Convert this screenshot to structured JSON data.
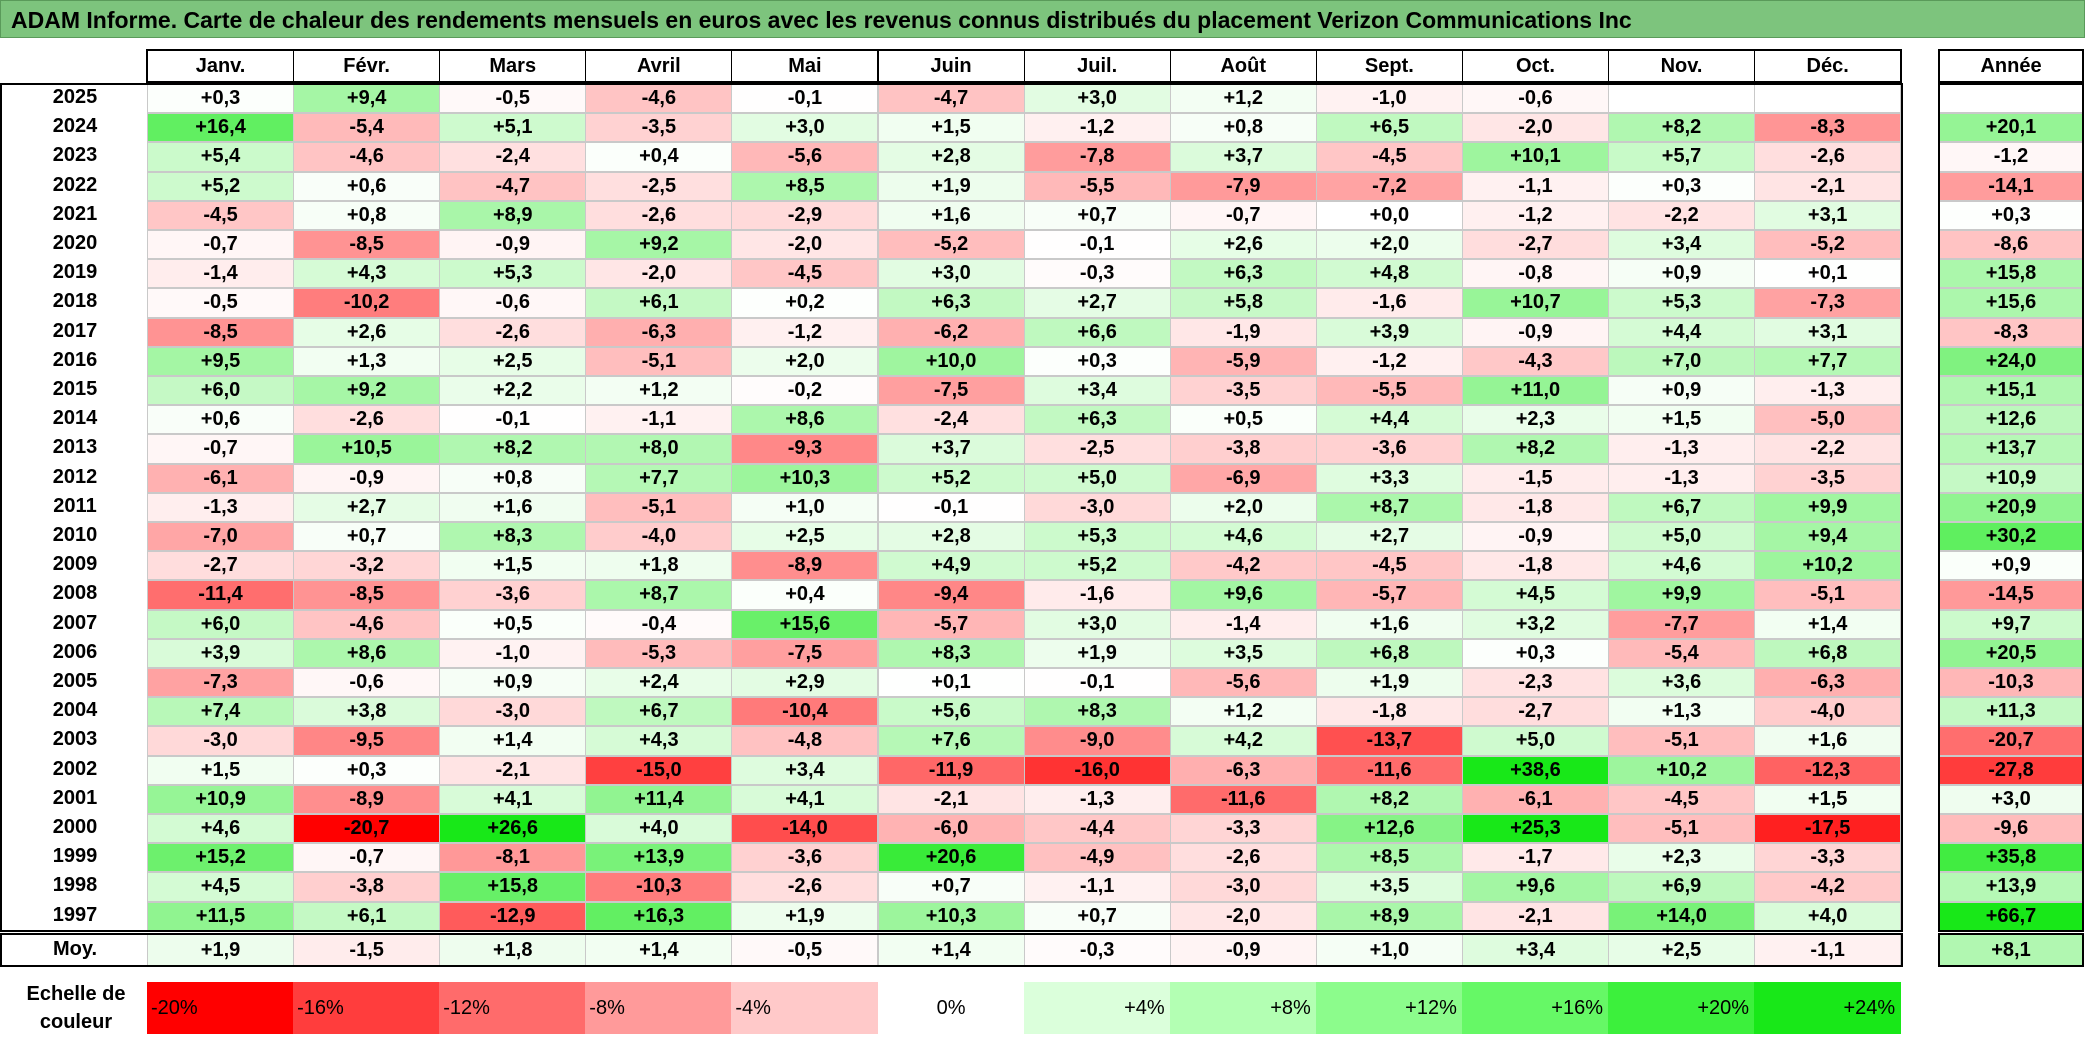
{
  "title": "ADAM Informe. Carte de chaleur des rendements mensuels en euros avec les revenus connus distribués du placement Verizon Communications Inc",
  "chart_data": {
    "type": "heatmap",
    "title": "ADAM Informe. Carte de chaleur des rendements mensuels en euros avec les revenus connus distribués du placement Verizon Communications Inc",
    "months": [
      "Janv.",
      "Févr.",
      "Mars",
      "Avril",
      "Mai",
      "Juin",
      "Juil.",
      "Août",
      "Sept.",
      "Oct.",
      "Nov.",
      "Déc."
    ],
    "year_header": "Année",
    "rows": [
      {
        "year": "2025",
        "values": [
          "+0,3",
          "+9,4",
          "-0,5",
          "-4,6",
          "-0,1",
          "-4,7",
          "+3,0",
          "+1,2",
          "-1,0",
          "-0,6",
          "",
          ""
        ],
        "annual": ""
      },
      {
        "year": "2024",
        "values": [
          "+16,4",
          "-5,4",
          "+5,1",
          "-3,5",
          "+3,0",
          "+1,5",
          "-1,2",
          "+0,8",
          "+6,5",
          "-2,0",
          "+8,2",
          "-8,3"
        ],
        "annual": "+20,1"
      },
      {
        "year": "2023",
        "values": [
          "+5,4",
          "-4,6",
          "-2,4",
          "+0,4",
          "-5,6",
          "+2,8",
          "-7,8",
          "+3,7",
          "-4,5",
          "+10,1",
          "+5,7",
          "-2,6"
        ],
        "annual": "-1,2"
      },
      {
        "year": "2022",
        "values": [
          "+5,2",
          "+0,6",
          "-4,7",
          "-2,5",
          "+8,5",
          "+1,9",
          "-5,5",
          "-7,9",
          "-7,2",
          "-1,1",
          "+0,3",
          "-2,1"
        ],
        "annual": "-14,1"
      },
      {
        "year": "2021",
        "values": [
          "-4,5",
          "+0,8",
          "+8,9",
          "-2,6",
          "-2,9",
          "+1,6",
          "+0,7",
          "-0,7",
          "+0,0",
          "-1,2",
          "-2,2",
          "+3,1"
        ],
        "annual": "+0,3"
      },
      {
        "year": "2020",
        "values": [
          "-0,7",
          "-8,5",
          "-0,9",
          "+9,2",
          "-2,0",
          "-5,2",
          "-0,1",
          "+2,6",
          "+2,0",
          "-2,7",
          "+3,4",
          "-5,2"
        ],
        "annual": "-8,6"
      },
      {
        "year": "2019",
        "values": [
          "-1,4",
          "+4,3",
          "+5,3",
          "-2,0",
          "-4,5",
          "+3,0",
          "-0,3",
          "+6,3",
          "+4,8",
          "-0,8",
          "+0,9",
          "+0,1"
        ],
        "annual": "+15,8"
      },
      {
        "year": "2018",
        "values": [
          "-0,5",
          "-10,2",
          "-0,6",
          "+6,1",
          "+0,2",
          "+6,3",
          "+2,7",
          "+5,8",
          "-1,6",
          "+10,7",
          "+5,3",
          "-7,3"
        ],
        "annual": "+15,6"
      },
      {
        "year": "2017",
        "values": [
          "-8,5",
          "+2,6",
          "-2,6",
          "-6,3",
          "-1,2",
          "-6,2",
          "+6,6",
          "-1,9",
          "+3,9",
          "-0,9",
          "+4,4",
          "+3,1"
        ],
        "annual": "-8,3"
      },
      {
        "year": "2016",
        "values": [
          "+9,5",
          "+1,3",
          "+2,5",
          "-5,1",
          "+2,0",
          "+10,0",
          "+0,3",
          "-5,9",
          "-1,2",
          "-4,3",
          "+7,0",
          "+7,7"
        ],
        "annual": "+24,0"
      },
      {
        "year": "2015",
        "values": [
          "+6,0",
          "+9,2",
          "+2,2",
          "+1,2",
          "-0,2",
          "-7,5",
          "+3,4",
          "-3,5",
          "-5,5",
          "+11,0",
          "+0,9",
          "-1,3"
        ],
        "annual": "+15,1"
      },
      {
        "year": "2014",
        "values": [
          "+0,6",
          "-2,6",
          "-0,1",
          "-1,1",
          "+8,6",
          "-2,4",
          "+6,3",
          "+0,5",
          "+4,4",
          "+2,3",
          "+1,5",
          "-5,0"
        ],
        "annual": "+12,6"
      },
      {
        "year": "2013",
        "values": [
          "-0,7",
          "+10,5",
          "+8,2",
          "+8,0",
          "-9,3",
          "+3,7",
          "-2,5",
          "-3,8",
          "-3,6",
          "+8,2",
          "-1,3",
          "-2,2"
        ],
        "annual": "+13,7"
      },
      {
        "year": "2012",
        "values": [
          "-6,1",
          "-0,9",
          "+0,8",
          "+7,7",
          "+10,3",
          "+5,2",
          "+5,0",
          "-6,9",
          "+3,3",
          "-1,5",
          "-1,3",
          "-3,5"
        ],
        "annual": "+10,9"
      },
      {
        "year": "2011",
        "values": [
          "-1,3",
          "+2,7",
          "+1,6",
          "-5,1",
          "+1,0",
          "-0,1",
          "-3,0",
          "+2,0",
          "+8,7",
          "-1,8",
          "+6,7",
          "+9,9"
        ],
        "annual": "+20,9"
      },
      {
        "year": "2010",
        "values": [
          "-7,0",
          "+0,7",
          "+8,3",
          "-4,0",
          "+2,5",
          "+2,8",
          "+5,3",
          "+4,6",
          "+2,7",
          "-0,9",
          "+5,0",
          "+9,4"
        ],
        "annual": "+30,2"
      },
      {
        "year": "2009",
        "values": [
          "-2,7",
          "-3,2",
          "+1,5",
          "+1,8",
          "-8,9",
          "+4,9",
          "+5,2",
          "-4,2",
          "-4,5",
          "-1,8",
          "+4,6",
          "+10,2"
        ],
        "annual": "+0,9"
      },
      {
        "year": "2008",
        "values": [
          "-11,4",
          "-8,5",
          "-3,6",
          "+8,7",
          "+0,4",
          "-9,4",
          "-1,6",
          "+9,6",
          "-5,7",
          "+4,5",
          "+9,9",
          "-5,1"
        ],
        "annual": "-14,5"
      },
      {
        "year": "2007",
        "values": [
          "+6,0",
          "-4,6",
          "+0,5",
          "-0,4",
          "+15,6",
          "-5,7",
          "+3,0",
          "-1,4",
          "+1,6",
          "+3,2",
          "-7,7",
          "+1,4"
        ],
        "annual": "+9,7"
      },
      {
        "year": "2006",
        "values": [
          "+3,9",
          "+8,6",
          "-1,0",
          "-5,3",
          "-7,5",
          "+8,3",
          "+1,9",
          "+3,5",
          "+6,8",
          "+0,3",
          "-5,4",
          "+6,8"
        ],
        "annual": "+20,5"
      },
      {
        "year": "2005",
        "values": [
          "-7,3",
          "-0,6",
          "+0,9",
          "+2,4",
          "+2,9",
          "+0,1",
          "-0,1",
          "-5,6",
          "+1,9",
          "-2,3",
          "+3,6",
          "-6,3"
        ],
        "annual": "-10,3"
      },
      {
        "year": "2004",
        "values": [
          "+7,4",
          "+3,8",
          "-3,0",
          "+6,7",
          "-10,4",
          "+5,6",
          "+8,3",
          "+1,2",
          "-1,8",
          "-2,7",
          "+1,3",
          "-4,0"
        ],
        "annual": "+11,3"
      },
      {
        "year": "2003",
        "values": [
          "-3,0",
          "-9,5",
          "+1,4",
          "+4,3",
          "-4,8",
          "+7,6",
          "-9,0",
          "+4,2",
          "-13,7",
          "+5,0",
          "-5,1",
          "+1,6"
        ],
        "annual": "-20,7"
      },
      {
        "year": "2002",
        "values": [
          "+1,5",
          "+0,3",
          "-2,1",
          "-15,0",
          "+3,4",
          "-11,9",
          "-16,0",
          "-6,3",
          "-11,6",
          "+38,6",
          "+10,2",
          "-12,3"
        ],
        "annual": "-27,8"
      },
      {
        "year": "2001",
        "values": [
          "+10,9",
          "-8,9",
          "+4,1",
          "+11,4",
          "+4,1",
          "-2,1",
          "-1,3",
          "-11,6",
          "+8,2",
          "-6,1",
          "-4,5",
          "+1,5"
        ],
        "annual": "+3,0"
      },
      {
        "year": "2000",
        "values": [
          "+4,6",
          "-20,7",
          "+26,6",
          "+4,0",
          "-14,0",
          "-6,0",
          "-4,4",
          "-3,3",
          "+12,6",
          "+25,3",
          "-5,1",
          "-17,5"
        ],
        "annual": "-9,6"
      },
      {
        "year": "1999",
        "values": [
          "+15,2",
          "-0,7",
          "-8,1",
          "+13,9",
          "-3,6",
          "+20,6",
          "-4,9",
          "-2,6",
          "+8,5",
          "-1,7",
          "+2,3",
          "-3,3"
        ],
        "annual": "+35,8"
      },
      {
        "year": "1998",
        "values": [
          "+4,5",
          "-3,8",
          "+15,8",
          "-10,3",
          "-2,6",
          "+0,7",
          "-1,1",
          "-3,0",
          "+3,5",
          "+9,6",
          "+6,9",
          "-4,2"
        ],
        "annual": "+13,9"
      },
      {
        "year": "1997",
        "values": [
          "+11,5",
          "+6,1",
          "-12,9",
          "+16,3",
          "+1,9",
          "+10,3",
          "+0,7",
          "-2,0",
          "+8,9",
          "-2,1",
          "+14,0",
          "+4,0"
        ],
        "annual": "+66,7"
      }
    ],
    "average": {
      "label": "Moy.",
      "values": [
        "+1,9",
        "-1,5",
        "+1,8",
        "+1,4",
        "-0,5",
        "+1,4",
        "-0,3",
        "-0,9",
        "+1,0",
        "+3,4",
        "+2,5",
        "-1,1"
      ],
      "annual": "+8,1"
    },
    "legend": {
      "label": "Echelle de couleur",
      "stops": [
        {
          "label": "-20%",
          "value": -20,
          "color": "#ff0000"
        },
        {
          "label": "-16%",
          "value": -16,
          "color": "#ff3d3d"
        },
        {
          "label": "-12%",
          "value": -12,
          "color": "#ff6b6b"
        },
        {
          "label": "-8%",
          "value": -8,
          "color": "#ff9a9a"
        },
        {
          "label": "-4%",
          "value": -4,
          "color": "#ffc9c9"
        },
        {
          "label": "0%",
          "value": 0,
          "color": "#ffffff"
        },
        {
          "label": "+4%",
          "value": 4,
          "color": "#dbffdb"
        },
        {
          "label": "+8%",
          "value": 8,
          "color": "#b3ffb3"
        },
        {
          "label": "+12%",
          "value": 12,
          "color": "#8cfc8c"
        },
        {
          "label": "+16%",
          "value": 16,
          "color": "#66f866"
        },
        {
          "label": "+20%",
          "value": 20,
          "color": "#3cf03c"
        },
        {
          "label": "+24%",
          "value": 24,
          "color": "#18e818"
        }
      ]
    },
    "colors": {
      "title_bg": "#7dc47d",
      "negative_max": "#ff0000",
      "positive_max": "#18e818"
    }
  }
}
